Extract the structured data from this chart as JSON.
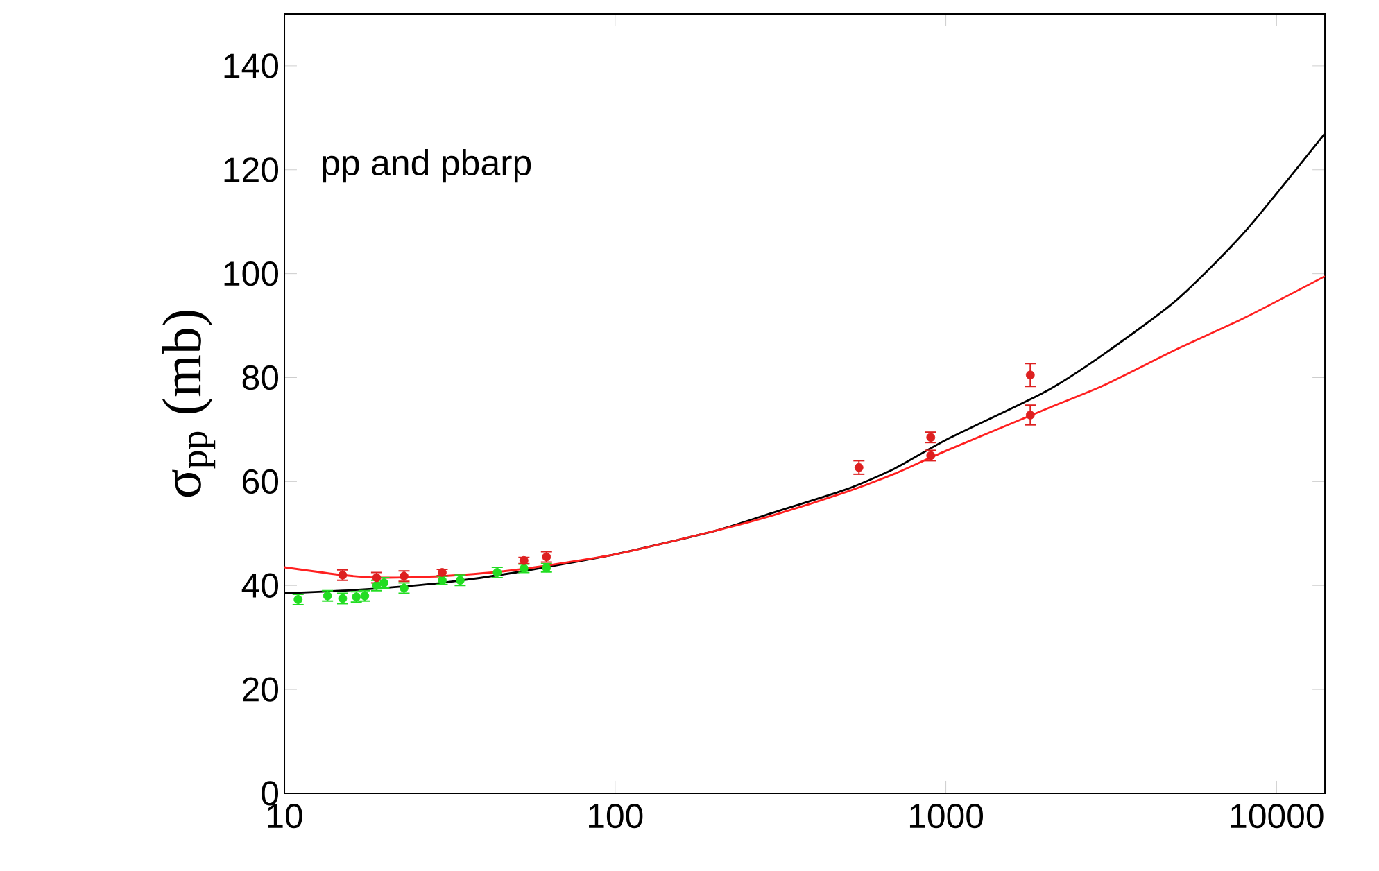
{
  "chart_data": {
    "type": "scatter",
    "ylabel": "σ$_{pp}$ (mb)",
    "annotations": [
      "pp and pbarp"
    ],
    "log": "x",
    "xlim": [
      10,
      14000
    ],
    "ylim": [
      0,
      150
    ],
    "xticks": [
      10,
      100,
      1000,
      10000
    ],
    "yticks": [
      0,
      20,
      40,
      60,
      80,
      100,
      120,
      140
    ],
    "grid": false,
    "series": [
      {
        "type": "line",
        "color": "#000000",
        "x": [
          10,
          15,
          20,
          30,
          50,
          100,
          200,
          300,
          500,
          700,
          1000,
          2000,
          3000,
          5000,
          8000,
          14000
        ],
        "values": [
          38.5,
          39,
          39.5,
          40.5,
          42.5,
          46,
          50.5,
          54,
          58.5,
          62.5,
          68,
          77.3,
          84.5,
          95,
          108,
          127
        ]
      },
      {
        "type": "line",
        "color": "#ff2020",
        "x": [
          10,
          15,
          20,
          30,
          50,
          100,
          200,
          300,
          500,
          700,
          1000,
          2000,
          3000,
          5000,
          8000,
          14000
        ],
        "values": [
          43.5,
          42,
          41.5,
          41.8,
          43,
          46,
          50.5,
          53.5,
          58,
          61.5,
          65.9,
          73.9,
          78.5,
          85.5,
          91.5,
          99.5
        ]
      },
      {
        "color": "#22dd22",
        "x": [
          11,
          13.5,
          15,
          16.5,
          17.5,
          19,
          20,
          23,
          30,
          34,
          44,
          53,
          62
        ],
        "values": [
          37.3,
          38,
          37.5,
          37.8,
          38,
          40,
          40.5,
          39.5,
          41,
          41,
          42.5,
          43.3,
          43.4
        ],
        "errors": [
          1,
          1,
          1,
          1,
          1,
          1,
          1,
          1,
          0.8,
          1,
          1,
          0.8,
          0.8
        ]
      },
      {
        "color": "#dd2020",
        "x": [
          15,
          19,
          23,
          30,
          53,
          62,
          546,
          900,
          900,
          1800,
          1800
        ],
        "values": [
          42,
          41.5,
          41.8,
          42.5,
          44.8,
          45.5,
          62.7,
          68.5,
          65,
          80.5,
          72.8
        ],
        "errors": [
          1,
          1,
          1,
          0.6,
          0.6,
          1,
          1.3,
          1,
          1,
          2.2,
          1.9
        ]
      }
    ]
  }
}
